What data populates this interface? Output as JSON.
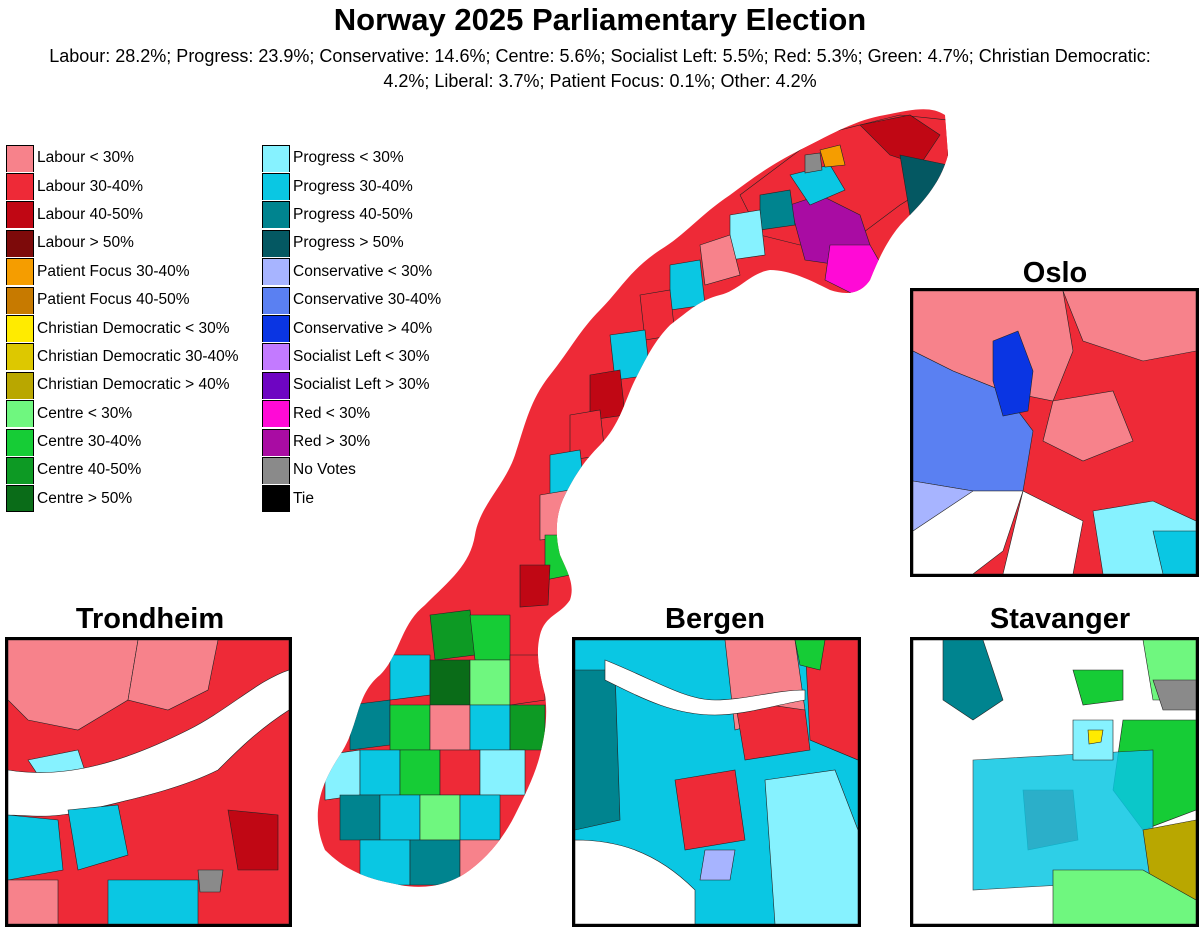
{
  "title": "Norway 2025 Parliamentary Election",
  "subtitle": "Labour: 28.2%; Progress: 23.9%; Conservative: 14.6%; Centre: 5.6%; Socialist Left: 5.5%; Red: 5.3%; Green: 4.7%; Christian Democratic: 4.2%; Liberal: 3.7%; Patient Focus: 0.1%; Other: 4.2%",
  "legend_left": [
    {
      "label": "Labour < 30%",
      "color": "#f7828b"
    },
    {
      "label": "Labour 30-40%",
      "color": "#ee2a37"
    },
    {
      "label": "Labour 40-50%",
      "color": "#c00714"
    },
    {
      "label": "Labour > 50%",
      "color": "#7d0a0a"
    },
    {
      "label": "Patient Focus 30-40%",
      "color": "#f59d00"
    },
    {
      "label": "Patient Focus 40-50%",
      "color": "#c77a00"
    },
    {
      "label": "Christian Democratic < 30%",
      "color": "#ffeb00"
    },
    {
      "label": "Christian Democratic 30-40%",
      "color": "#ddc800"
    },
    {
      "label": "Christian Democratic > 40%",
      "color": "#b9a700"
    },
    {
      "label": "Centre < 30%",
      "color": "#6ff77f"
    },
    {
      "label": "Centre 30-40%",
      "color": "#16cc36"
    },
    {
      "label": "Centre 40-50%",
      "color": "#0d9a24"
    },
    {
      "label": "Centre > 50%",
      "color": "#0a6c18"
    }
  ],
  "legend_right": [
    {
      "label": "Progress < 30%",
      "color": "#86f2ff"
    },
    {
      "label": "Progress 30-40%",
      "color": "#0ac7e3"
    },
    {
      "label": "Progress 40-50%",
      "color": "#00848f"
    },
    {
      "label": "Progress > 50%",
      "color": "#045862"
    },
    {
      "label": "Conservative < 30%",
      "color": "#a7b4ff"
    },
    {
      "label": "Conservative 30-40%",
      "color": "#5a80f2"
    },
    {
      "label": "Conservative > 40%",
      "color": "#0a35e3"
    },
    {
      "label": "Socialist Left < 30%",
      "color": "#c37aff"
    },
    {
      "label": "Socialist Left > 30%",
      "color": "#6e05c2"
    },
    {
      "label": "Red < 30%",
      "color": "#ff0ad6"
    },
    {
      "label": "Red > 30%",
      "color": "#a90ca3"
    },
    {
      "label": "No Votes",
      "color": "#8a8a8a"
    },
    {
      "label": "Tie",
      "color": "#000000"
    }
  ],
  "insets": {
    "oslo": "Oslo",
    "trondheim": "Trondheim",
    "bergen": "Bergen",
    "stavanger": "Stavanger"
  }
}
